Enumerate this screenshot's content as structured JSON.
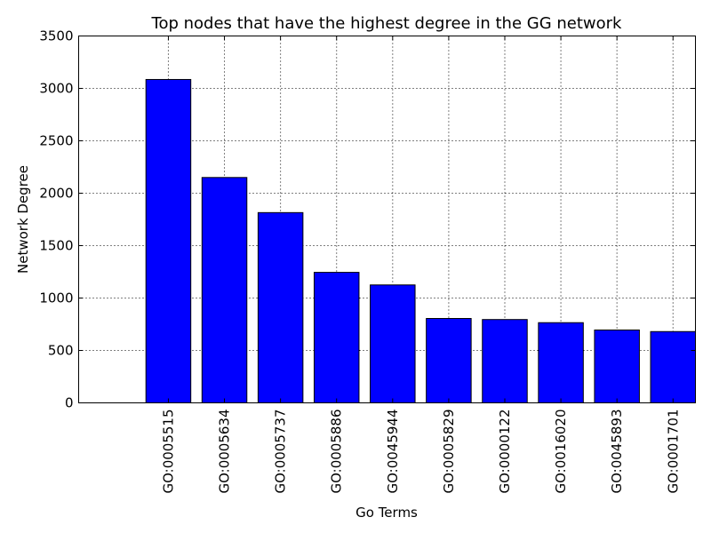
{
  "chart_data": {
    "type": "bar",
    "title": "Top nodes that have the highest degree in the GG network",
    "xlabel": "Go Terms",
    "ylabel": "Network Degree",
    "categories": [
      "GO:0005515",
      "GO:0005634",
      "GO:0005737",
      "GO:0005886",
      "GO:0045944",
      "GO:0005829",
      "GO:0000122",
      "GO:0016020",
      "GO:0045893",
      "GO:0001701"
    ],
    "values": [
      3085,
      2150,
      1815,
      1245,
      1125,
      805,
      795,
      765,
      695,
      680
    ],
    "ylim": [
      0,
      3500
    ],
    "yticks": [
      0,
      500,
      1000,
      1500,
      2000,
      2500,
      3000,
      3500
    ],
    "ytick_labels": [
      "0",
      "500",
      "1000",
      "1500",
      "2000",
      "2500",
      "3000",
      "3500"
    ],
    "grid": true,
    "bar_color": "#0000ff"
  }
}
